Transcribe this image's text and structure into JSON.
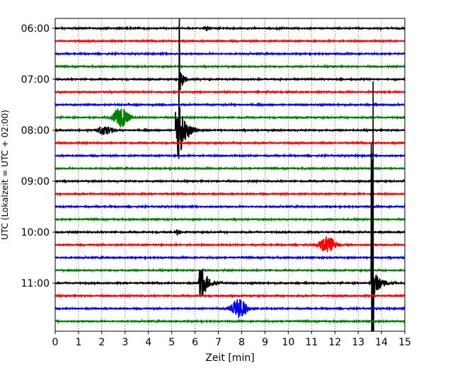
{
  "chart_data": {
    "type": "line",
    "title": "",
    "xlabel": "Zeit  [min]",
    "ylabel": "UTC (Lokalzeit = UTC + 02:00)",
    "xlim": [
      0,
      15
    ],
    "x_ticks": [
      0,
      1,
      2,
      3,
      4,
      5,
      6,
      7,
      8,
      9,
      10,
      11,
      12,
      13,
      14,
      15
    ],
    "y_tick_labels": [
      "06:00",
      "07:00",
      "08:00",
      "09:00",
      "10:00",
      "11:00"
    ],
    "grid": "vertical dotted",
    "colors": [
      "#000000",
      "#ff0000",
      "#0000ff",
      "#008000"
    ],
    "trace_count": 24,
    "events": [
      {
        "trace": 0,
        "minute": 6.5,
        "amplitude": 0.25,
        "kind": "small"
      },
      {
        "trace": 4,
        "minute": 5.3,
        "amplitude": 4.5,
        "kind": "spike"
      },
      {
        "trace": 7,
        "minute": 2.8,
        "amplitude": 0.8,
        "kind": "burst"
      },
      {
        "trace": 8,
        "minute": 5.2,
        "amplitude": 2.5,
        "kind": "quake"
      },
      {
        "trace": 8,
        "minute": 2.1,
        "amplitude": 0.4,
        "kind": "burst"
      },
      {
        "trace": 16,
        "minute": 5.25,
        "amplitude": 0.3,
        "kind": "small"
      },
      {
        "trace": 17,
        "minute": 11.7,
        "amplitude": 0.7,
        "kind": "burst"
      },
      {
        "trace": 20,
        "minute": 6.2,
        "amplitude": 1.3,
        "kind": "quake"
      },
      {
        "trace": 20,
        "minute": 13.6,
        "amplitude": 9.0,
        "kind": "quake-big"
      },
      {
        "trace": 22,
        "minute": 7.9,
        "amplitude": 0.8,
        "kind": "burst"
      }
    ]
  }
}
